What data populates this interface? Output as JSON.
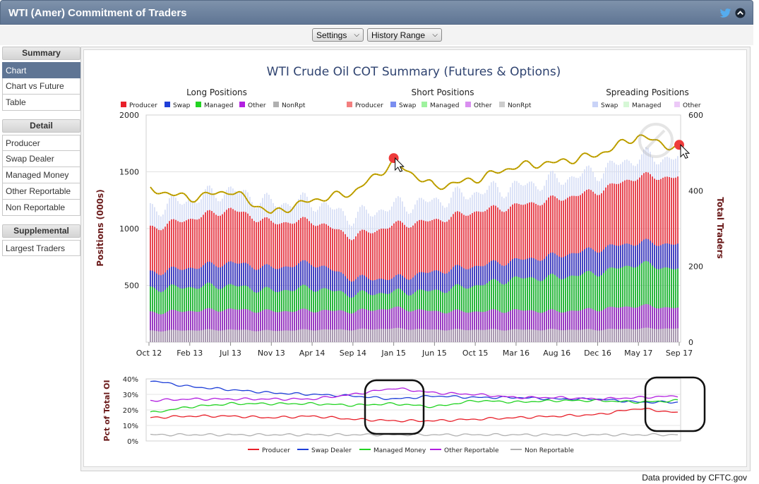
{
  "window": {
    "title": "WTI (Amer) Commitment of Traders",
    "icons": [
      "twitter-icon",
      "collapse-icon"
    ]
  },
  "toolbar": {
    "settings_label": "Settings",
    "history_label": "History Range"
  },
  "sidebar": {
    "summary_header": "Summary",
    "summary_items": [
      "Chart",
      "Chart vs Future",
      "Table"
    ],
    "detail_header": "Detail",
    "detail_items": [
      "Producer",
      "Swap Dealer",
      "Managed Money",
      "Other Reportable",
      "Non Reportable"
    ],
    "supplemental_header": "Supplemental",
    "supplemental_items": [
      "Largest Traders"
    ],
    "active_item": "Chart"
  },
  "footer": {
    "credit_prefix": "Data provided by ",
    "credit_link": "CFTC.gov"
  },
  "colors": {
    "header": "#5f7594",
    "producer": "#e8202a",
    "swap": "#1f3fd8",
    "managed": "#22d322",
    "other": "#b21fe0",
    "nonrept": "#b0b0b0",
    "traders_line": "#c8a800"
  },
  "chart_data": [
    {
      "type": "bar",
      "title": "WTI Crude Oil COT Summary (Futures & Options)",
      "legend_groups": [
        {
          "title": "Long Positions",
          "items": [
            "Producer",
            "Swap",
            "Managed",
            "Other",
            "NonRpt"
          ]
        },
        {
          "title": "Short Positions",
          "items": [
            "Producer",
            "Swap",
            "Managed",
            "Other",
            "NonRpt"
          ]
        },
        {
          "title": "Spreading Positions",
          "items": [
            "Swap",
            "Managed",
            "Other"
          ]
        }
      ],
      "ylabel": "Positions (000s)",
      "y2label": "Total Traders",
      "ylim": [
        0,
        2000
      ],
      "y2lim": [
        0,
        600
      ],
      "yticks": [
        "2000",
        "1500",
        "1000",
        "500"
      ],
      "y2ticks": [
        "600",
        "400",
        "200",
        "0"
      ],
      "x_ticks": [
        "Oct 12",
        "Feb 13",
        "Jul 13",
        "Nov 13",
        "Apr 14",
        "Sep 14",
        "Jan 15",
        "Jun 15",
        "Oct 15",
        "Mar 16",
        "Aug 16",
        "Dec 16",
        "May 17",
        "Sep 17"
      ],
      "long_positions_stack_approx": {
        "x": [
          "Oct 12",
          "Jul 13",
          "Nov 13",
          "Apr 14",
          "Sep 14",
          "Jan 15",
          "Jun 15",
          "Oct 15",
          "Mar 16",
          "Aug 16",
          "Dec 16",
          "May 17",
          "Sep 17"
        ],
        "nonrept": [
          100,
          110,
          100,
          110,
          110,
          120,
          110,
          110,
          110,
          110,
          110,
          120,
          120
        ],
        "other_top": [
          260,
          290,
          270,
          280,
          270,
          300,
          270,
          270,
          280,
          270,
          290,
          320,
          300
        ],
        "managed_top": [
          470,
          500,
          450,
          480,
          420,
          440,
          450,
          500,
          560,
          570,
          610,
          690,
          640
        ],
        "swap_top": [
          610,
          700,
          650,
          700,
          560,
          560,
          620,
          670,
          720,
          760,
          820,
          880,
          860
        ],
        "producer_top": [
          1000,
          1170,
          1050,
          1070,
          930,
          1030,
          1070,
          1150,
          1200,
          1260,
          1330,
          1460,
          1450
        ]
      },
      "total_traders": {
        "x": [
          "Oct 12",
          "Feb 13",
          "Jul 13",
          "Nov 13",
          "Apr 14",
          "Sep 14",
          "Jan 15",
          "Jun 15",
          "Oct 15",
          "Mar 16",
          "Aug 16",
          "Dec 16",
          "May 17",
          "Sep 17"
        ],
        "values": [
          405,
          380,
          400,
          340,
          375,
          395,
          475,
          410,
          430,
          465,
          475,
          495,
          545,
          510
        ]
      }
    },
    {
      "type": "line",
      "ylabel": "Pct of Total OI",
      "ylim": [
        0,
        40
      ],
      "yticks": [
        "40%",
        "30%",
        "20%",
        "10%",
        "0%"
      ],
      "x": [
        "Oct 12",
        "Feb 13",
        "Jul 13",
        "Nov 13",
        "Apr 14",
        "Sep 14",
        "Jan 15",
        "Jun 15",
        "Oct 15",
        "Mar 16",
        "Aug 16",
        "Dec 16",
        "May 17",
        "Sep 17"
      ],
      "series": [
        {
          "name": "Producer",
          "values": [
            15,
            16,
            16,
            15,
            16,
            14,
            13,
            13,
            14,
            15,
            16,
            17,
            21,
            18
          ]
        },
        {
          "name": "Swap Dealer",
          "values": [
            39,
            35,
            33,
            31,
            30,
            29,
            27,
            29,
            28,
            28,
            27,
            27,
            25,
            25
          ]
        },
        {
          "name": "Managed Money",
          "values": [
            18,
            22,
            24,
            24,
            24,
            23,
            24,
            22,
            26,
            25,
            26,
            26,
            25,
            26
          ]
        },
        {
          "name": "Other Reportable",
          "values": [
            26,
            27,
            27,
            27,
            27,
            30,
            34,
            31,
            30,
            28,
            28,
            27,
            28,
            29
          ]
        },
        {
          "name": "Non Reportable",
          "values": [
            4,
            4,
            4,
            4,
            4,
            4,
            4,
            4,
            4,
            4,
            4,
            4,
            4,
            4
          ]
        }
      ]
    }
  ]
}
